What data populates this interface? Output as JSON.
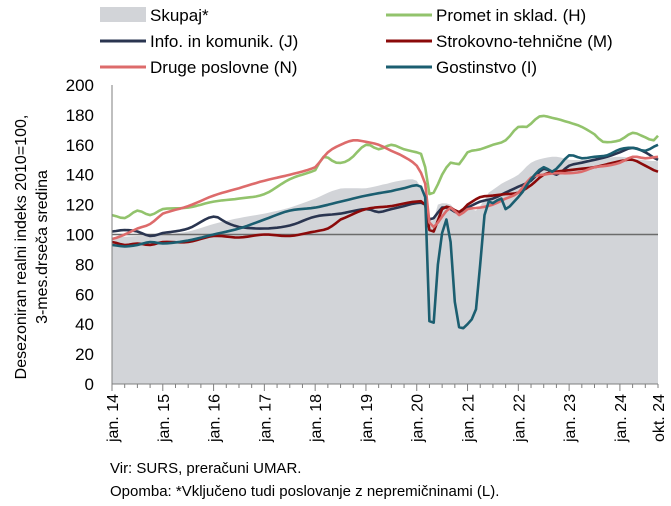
{
  "chart_data": {
    "type": "line",
    "ylabel": "Desezoniran realni indeks 2010=100,\n3-mes.drseča sredina",
    "yticks": [
      0,
      20,
      40,
      60,
      80,
      100,
      120,
      140,
      160,
      180,
      200
    ],
    "ylim": [
      0,
      200
    ],
    "xlim": [
      "2014-01",
      "2024-10"
    ],
    "xtick_labels": [
      "jan. 14",
      "jan. 15",
      "jan. 16",
      "jan. 17",
      "jan. 18",
      "jan. 19",
      "jan. 20",
      "jan. 21",
      "jan. 22",
      "jan. 23",
      "jan. 24",
      "okt. 24"
    ],
    "reference_line": 100,
    "legend_position": "top",
    "series": [
      {
        "name": "Skupaj*",
        "style": "area",
        "color": "#d2d4d8",
        "points": [
          [
            "2014-01",
            98
          ],
          [
            "2014-07",
            99
          ],
          [
            "2015-01",
            100
          ],
          [
            "2015-07",
            102
          ],
          [
            "2016-01",
            107
          ],
          [
            "2016-07",
            111
          ],
          [
            "2017-01",
            114
          ],
          [
            "2017-07",
            118
          ],
          [
            "2018-01",
            124
          ],
          [
            "2018-06",
            130
          ],
          [
            "2018-09",
            131
          ],
          [
            "2019-01",
            131
          ],
          [
            "2019-06",
            134
          ],
          [
            "2019-09",
            136
          ],
          [
            "2019-12",
            137
          ],
          [
            "2020-01",
            136
          ],
          [
            "2020-03",
            125
          ],
          [
            "2020-04",
            108
          ],
          [
            "2020-05",
            110
          ],
          [
            "2020-06",
            120
          ],
          [
            "2020-09",
            120
          ],
          [
            "2020-11",
            114
          ],
          [
            "2021-01",
            118
          ],
          [
            "2021-03",
            116
          ],
          [
            "2021-05",
            123
          ],
          [
            "2021-06",
            128
          ],
          [
            "2021-09",
            134
          ],
          [
            "2022-01",
            140
          ],
          [
            "2022-04",
            148
          ],
          [
            "2022-07",
            151
          ],
          [
            "2022-10",
            152
          ],
          [
            "2023-01",
            150
          ],
          [
            "2023-07",
            150
          ],
          [
            "2024-01",
            152
          ],
          [
            "2024-06",
            150
          ],
          [
            "2024-10",
            149
          ]
        ]
      },
      {
        "name": "Promet in sklad. (H)",
        "style": "line",
        "color": "#92c36c",
        "points": [
          [
            "2014-01",
            113
          ],
          [
            "2014-04",
            111
          ],
          [
            "2014-07",
            116
          ],
          [
            "2014-10",
            113
          ],
          [
            "2015-01",
            117
          ],
          [
            "2015-07",
            118
          ],
          [
            "2016-01",
            122
          ],
          [
            "2016-07",
            124
          ],
          [
            "2017-01",
            127
          ],
          [
            "2017-07",
            137
          ],
          [
            "2018-01",
            143
          ],
          [
            "2018-03",
            152
          ],
          [
            "2018-06",
            148
          ],
          [
            "2018-09",
            150
          ],
          [
            "2019-01",
            160
          ],
          [
            "2019-04",
            157
          ],
          [
            "2019-07",
            160
          ],
          [
            "2019-10",
            157
          ],
          [
            "2020-01",
            155
          ],
          [
            "2020-02",
            154
          ],
          [
            "2020-03",
            145
          ],
          [
            "2020-04",
            127
          ],
          [
            "2020-05",
            128
          ],
          [
            "2020-07",
            140
          ],
          [
            "2020-09",
            148
          ],
          [
            "2020-11",
            147
          ],
          [
            "2021-01",
            155
          ],
          [
            "2021-04",
            157
          ],
          [
            "2021-07",
            160
          ],
          [
            "2021-10",
            163
          ],
          [
            "2022-01",
            172
          ],
          [
            "2022-03",
            172
          ],
          [
            "2022-06",
            179
          ],
          [
            "2022-09",
            178
          ],
          [
            "2023-01",
            175
          ],
          [
            "2023-04",
            172
          ],
          [
            "2023-07",
            167
          ],
          [
            "2023-09",
            162
          ],
          [
            "2024-01",
            163
          ],
          [
            "2024-04",
            168
          ],
          [
            "2024-07",
            165
          ],
          [
            "2024-09",
            163
          ],
          [
            "2024-10",
            166
          ]
        ]
      },
      {
        "name": "Info. in komunik. (J)",
        "style": "line",
        "color": "#2a3550",
        "points": [
          [
            "2014-01",
            102
          ],
          [
            "2014-04",
            103
          ],
          [
            "2014-07",
            102
          ],
          [
            "2014-10",
            99
          ],
          [
            "2015-01",
            101
          ],
          [
            "2015-07",
            104
          ],
          [
            "2016-01",
            112
          ],
          [
            "2016-04",
            108
          ],
          [
            "2016-07",
            105
          ],
          [
            "2017-01",
            104
          ],
          [
            "2017-07",
            106
          ],
          [
            "2018-01",
            112
          ],
          [
            "2018-07",
            114
          ],
          [
            "2019-01",
            117
          ],
          [
            "2019-04",
            115
          ],
          [
            "2019-07",
            117
          ],
          [
            "2019-10",
            119
          ],
          [
            "2020-01",
            121
          ],
          [
            "2020-03",
            120
          ],
          [
            "2020-04",
            110
          ],
          [
            "2020-05",
            111
          ],
          [
            "2020-07",
            118
          ],
          [
            "2020-09",
            117
          ],
          [
            "2020-11",
            114
          ],
          [
            "2021-01",
            118
          ],
          [
            "2021-04",
            122
          ],
          [
            "2021-07",
            124
          ],
          [
            "2021-10",
            128
          ],
          [
            "2022-01",
            132
          ],
          [
            "2022-04",
            136
          ],
          [
            "2022-07",
            144
          ],
          [
            "2022-10",
            140
          ],
          [
            "2023-01",
            146
          ],
          [
            "2023-04",
            148
          ],
          [
            "2023-07",
            150
          ],
          [
            "2023-10",
            152
          ],
          [
            "2024-01",
            155
          ],
          [
            "2024-04",
            158
          ],
          [
            "2024-07",
            155
          ],
          [
            "2024-10",
            150
          ]
        ]
      },
      {
        "name": "Strokovno-tehnične (M)",
        "style": "line",
        "color": "#8b0a0a",
        "points": [
          [
            "2014-01",
            95
          ],
          [
            "2014-04",
            93
          ],
          [
            "2014-07",
            94
          ],
          [
            "2014-10",
            93
          ],
          [
            "2015-01",
            95
          ],
          [
            "2015-07",
            95
          ],
          [
            "2016-01",
            99
          ],
          [
            "2016-07",
            98
          ],
          [
            "2017-01",
            100
          ],
          [
            "2017-07",
            99
          ],
          [
            "2018-01",
            102
          ],
          [
            "2018-04",
            104
          ],
          [
            "2018-07",
            110
          ],
          [
            "2019-01",
            117
          ],
          [
            "2019-07",
            119
          ],
          [
            "2020-01",
            122
          ],
          [
            "2020-03",
            120
          ],
          [
            "2020-04",
            103
          ],
          [
            "2020-05",
            102
          ],
          [
            "2020-07",
            117
          ],
          [
            "2020-09",
            118
          ],
          [
            "2020-11",
            115
          ],
          [
            "2021-01",
            120
          ],
          [
            "2021-04",
            125
          ],
          [
            "2021-07",
            126
          ],
          [
            "2021-10",
            127
          ],
          [
            "2022-01",
            128
          ],
          [
            "2022-04",
            133
          ],
          [
            "2022-07",
            140
          ],
          [
            "2022-10",
            142
          ],
          [
            "2023-01",
            143
          ],
          [
            "2023-04",
            144
          ],
          [
            "2023-07",
            145
          ],
          [
            "2023-10",
            147
          ],
          [
            "2024-01",
            149
          ],
          [
            "2024-04",
            150
          ],
          [
            "2024-07",
            146
          ],
          [
            "2024-10",
            142
          ]
        ]
      },
      {
        "name": "Druge poslovne (N)",
        "style": "line",
        "color": "#dd6b6b",
        "points": [
          [
            "2014-01",
            97
          ],
          [
            "2014-04",
            100
          ],
          [
            "2014-07",
            104
          ],
          [
            "2014-10",
            107
          ],
          [
            "2015-01",
            114
          ],
          [
            "2015-07",
            119
          ],
          [
            "2016-01",
            126
          ],
          [
            "2016-07",
            131
          ],
          [
            "2017-01",
            136
          ],
          [
            "2017-07",
            140
          ],
          [
            "2018-01",
            145
          ],
          [
            "2018-04",
            155
          ],
          [
            "2018-07",
            160
          ],
          [
            "2018-10",
            163
          ],
          [
            "2019-01",
            162
          ],
          [
            "2019-04",
            160
          ],
          [
            "2019-07",
            156
          ],
          [
            "2019-10",
            152
          ],
          [
            "2020-01",
            146
          ],
          [
            "2020-03",
            134
          ],
          [
            "2020-04",
            108
          ],
          [
            "2020-05",
            105
          ],
          [
            "2020-07",
            112
          ],
          [
            "2020-09",
            118
          ],
          [
            "2020-11",
            113
          ],
          [
            "2021-01",
            117
          ],
          [
            "2021-04",
            118
          ],
          [
            "2021-07",
            120
          ],
          [
            "2021-10",
            124
          ],
          [
            "2022-01",
            128
          ],
          [
            "2022-04",
            138
          ],
          [
            "2022-07",
            140
          ],
          [
            "2022-10",
            141
          ],
          [
            "2023-01",
            141
          ],
          [
            "2023-04",
            142
          ],
          [
            "2023-07",
            145
          ],
          [
            "2023-10",
            146
          ],
          [
            "2024-01",
            148
          ],
          [
            "2024-04",
            152
          ],
          [
            "2024-07",
            151
          ],
          [
            "2024-10",
            152
          ]
        ]
      },
      {
        "name": "Gostinstvo (I)",
        "style": "line",
        "color": "#1b5e70",
        "points": [
          [
            "2014-01",
            93
          ],
          [
            "2014-04",
            92
          ],
          [
            "2014-07",
            93
          ],
          [
            "2014-10",
            95
          ],
          [
            "2015-01",
            94
          ],
          [
            "2015-07",
            96
          ],
          [
            "2016-01",
            100
          ],
          [
            "2016-07",
            104
          ],
          [
            "2017-01",
            110
          ],
          [
            "2017-07",
            116
          ],
          [
            "2018-01",
            118
          ],
          [
            "2018-07",
            122
          ],
          [
            "2019-01",
            126
          ],
          [
            "2019-07",
            129
          ],
          [
            "2019-10",
            131
          ],
          [
            "2020-01",
            133
          ],
          [
            "2020-02",
            132
          ],
          [
            "2020-03",
            125
          ],
          [
            "2020-04",
            42
          ],
          [
            "2020-05",
            41
          ],
          [
            "2020-06",
            80
          ],
          [
            "2020-07",
            101
          ],
          [
            "2020-08",
            110
          ],
          [
            "2020-09",
            95
          ],
          [
            "2020-10",
            55
          ],
          [
            "2020-11",
            38
          ],
          [
            "2021-01",
            40
          ],
          [
            "2021-03",
            50
          ],
          [
            "2021-04",
            80
          ],
          [
            "2021-05",
            113
          ],
          [
            "2021-06",
            122
          ],
          [
            "2021-07",
            121
          ],
          [
            "2021-09",
            124
          ],
          [
            "2021-10",
            117
          ],
          [
            "2021-12",
            122
          ],
          [
            "2022-01",
            125
          ],
          [
            "2022-04",
            137
          ],
          [
            "2022-07",
            145
          ],
          [
            "2022-09",
            142
          ],
          [
            "2022-11",
            147
          ],
          [
            "2023-01",
            153
          ],
          [
            "2023-04",
            151
          ],
          [
            "2023-07",
            152
          ],
          [
            "2023-10",
            153
          ],
          [
            "2024-01",
            157
          ],
          [
            "2024-04",
            158
          ],
          [
            "2024-07",
            156
          ],
          [
            "2024-10",
            160
          ]
        ]
      }
    ]
  },
  "notes": {
    "source": "Vir: SURS, preračuni UMAR.",
    "footnote": "Opomba: *Vključeno tudi poslovanje z nepremičninami (L)."
  }
}
